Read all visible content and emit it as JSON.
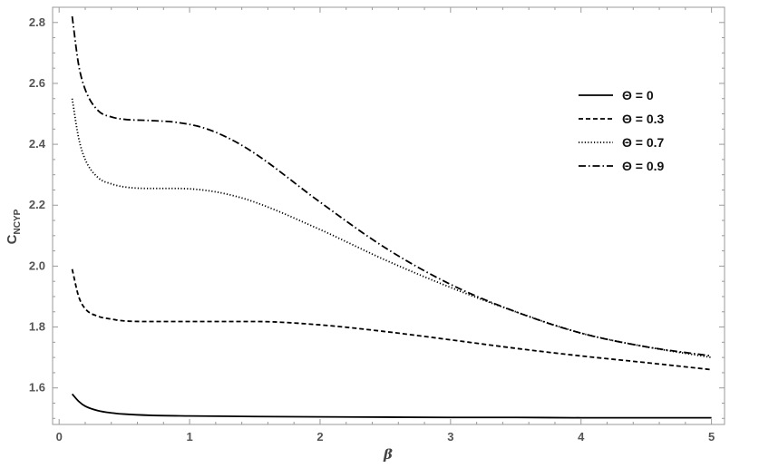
{
  "chart_data": {
    "type": "line",
    "xlabel": "β",
    "ylabel": "C",
    "ylabel_subscript": "NCYP",
    "xlim": [
      -0.05,
      5.1
    ],
    "ylim": [
      1.48,
      2.85
    ],
    "x_ticks": [
      0,
      1,
      2,
      3,
      4,
      5
    ],
    "y_ticks": [
      1.6,
      1.8,
      2.0,
      2.2,
      2.4,
      2.6,
      2.8
    ],
    "x_tick_labels": [
      "0",
      "1",
      "2",
      "3",
      "4",
      "5"
    ],
    "y_tick_labels": [
      "1.6",
      "1.8",
      "2.0",
      "2.2",
      "2.4",
      "2.6",
      "2.8"
    ],
    "legend_position": "top-right",
    "series": [
      {
        "name": "Θ = 0",
        "dash": "solid",
        "x": [
          0.1,
          0.15,
          0.2,
          0.3,
          0.4,
          0.5,
          0.7,
          1.0,
          1.5,
          2.0,
          2.5,
          3.0,
          3.5,
          4.0,
          4.5,
          5.0
        ],
        "y": [
          1.58,
          1.556,
          1.54,
          1.525,
          1.518,
          1.514,
          1.51,
          1.508,
          1.506,
          1.505,
          1.504,
          1.503,
          1.503,
          1.502,
          1.502,
          1.502
        ]
      },
      {
        "name": "Θ = 0.3",
        "dash": "dashed",
        "x": [
          0.1,
          0.15,
          0.2,
          0.3,
          0.4,
          0.5,
          0.7,
          1.0,
          1.5,
          2.0,
          2.5,
          3.0,
          3.5,
          4.0,
          4.5,
          5.0
        ],
        "y": [
          1.99,
          1.9,
          1.86,
          1.835,
          1.826,
          1.82,
          1.818,
          1.818,
          1.818,
          1.807,
          1.785,
          1.758,
          1.73,
          1.705,
          1.683,
          1.66
        ]
      },
      {
        "name": "Θ = 0.7",
        "dash": "dotted",
        "x": [
          0.1,
          0.15,
          0.2,
          0.3,
          0.4,
          0.5,
          0.7,
          0.9,
          1.1,
          1.3,
          1.5,
          2.0,
          2.5,
          3.0,
          3.5,
          4.0,
          4.5,
          5.0
        ],
        "y": [
          2.55,
          2.42,
          2.35,
          2.29,
          2.27,
          2.26,
          2.255,
          2.255,
          2.25,
          2.235,
          2.21,
          2.12,
          2.02,
          1.93,
          1.85,
          1.78,
          1.735,
          1.7
        ]
      },
      {
        "name": "Θ = 0.9",
        "dash": "dashdot",
        "x": [
          0.1,
          0.15,
          0.2,
          0.3,
          0.4,
          0.5,
          0.7,
          0.9,
          1.1,
          1.3,
          1.5,
          2.0,
          2.5,
          3.0,
          3.5,
          4.0,
          4.5,
          5.0
        ],
        "y": [
          2.82,
          2.66,
          2.58,
          2.51,
          2.49,
          2.482,
          2.478,
          2.472,
          2.455,
          2.42,
          2.37,
          2.21,
          2.06,
          1.94,
          1.85,
          1.78,
          1.735,
          1.705
        ]
      }
    ]
  }
}
